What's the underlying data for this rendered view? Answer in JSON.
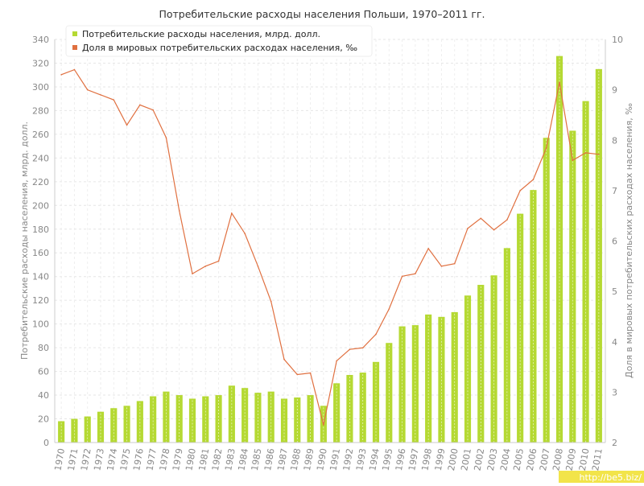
{
  "chart_data": {
    "type": "bar",
    "title": "Потребительские расходы населения Польши, 1970–2011 гг.",
    "ylabel": "Потребительские расходы населения, млрд. долл.",
    "ylabel2": "Доля в мировых потребительских расходах населения, ‰",
    "ylim": [
      0,
      340
    ],
    "y2lim": [
      2,
      10
    ],
    "yticks": [
      0,
      20,
      40,
      60,
      80,
      100,
      120,
      140,
      160,
      180,
      200,
      220,
      240,
      260,
      280,
      300,
      320,
      340
    ],
    "y2ticks": [
      2,
      3,
      4,
      5,
      6,
      7,
      8,
      9,
      10
    ],
    "grid": true,
    "legend_position": "top-left",
    "categories": [
      "1970",
      "1971",
      "1972",
      "1973",
      "1974",
      "1975",
      "1976",
      "1977",
      "1978",
      "1979",
      "1980",
      "1981",
      "1982",
      "1983",
      "1984",
      "1985",
      "1986",
      "1987",
      "1988",
      "1989",
      "1990",
      "1991",
      "1992",
      "1993",
      "1994",
      "1995",
      "1996",
      "1997",
      "1998",
      "1999",
      "2000",
      "2001",
      "2002",
      "2003",
      "2004",
      "2005",
      "2006",
      "2007",
      "2008",
      "2009",
      "2010",
      "2011"
    ],
    "series": [
      {
        "name": "Потребительские расходы населения, млрд. долл.",
        "type": "bar",
        "axis": "left",
        "color": "#b5d933",
        "values": [
          18,
          20,
          22,
          26,
          29,
          31,
          35,
          39,
          43,
          40,
          37,
          39,
          40,
          48,
          46,
          42,
          43,
          37,
          38,
          40,
          31,
          50,
          57,
          59,
          68,
          84,
          98,
          99,
          108,
          106,
          110,
          124,
          133,
          141,
          164,
          193,
          213,
          257,
          326,
          263,
          288,
          315
        ]
      },
      {
        "name": "Доля в мировых потребительских расходах населения, ‰",
        "type": "line",
        "axis": "right",
        "color": "#e07040",
        "values": [
          9.3,
          9.4,
          9.0,
          8.9,
          8.8,
          8.3,
          8.7,
          8.6,
          8.05,
          6.6,
          5.35,
          5.5,
          5.6,
          6.55,
          6.15,
          5.5,
          4.8,
          3.65,
          3.35,
          3.38,
          2.35,
          3.62,
          3.85,
          3.88,
          4.15,
          4.65,
          5.3,
          5.35,
          5.85,
          5.5,
          5.55,
          6.25,
          6.45,
          6.22,
          6.42,
          7.0,
          7.22,
          7.85,
          9.15,
          7.6,
          7.75,
          7.72
        ]
      }
    ]
  },
  "watermark": "http://be5.biz/"
}
